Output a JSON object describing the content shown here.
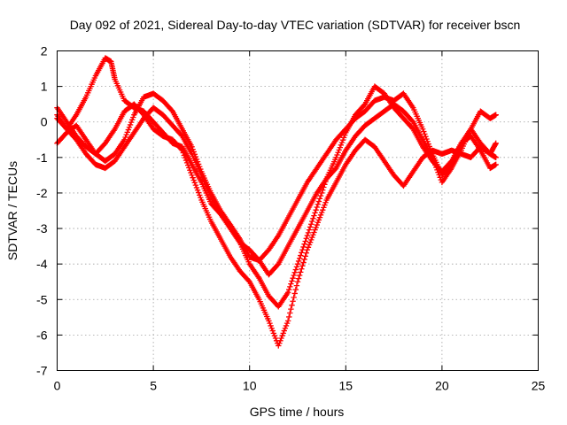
{
  "chart_data": {
    "type": "scatter",
    "title": "Day 092 of 2021, Sidereal Day-to-day VTEC variation (SDTVAR) for receiver bscn",
    "xlabel": "GPS time / hours",
    "ylabel": "SDTVAR / TECUs",
    "xlim": [
      0,
      25
    ],
    "ylim": [
      -7,
      2
    ],
    "x_ticks": [
      "0",
      "5",
      "10",
      "15",
      "20",
      "25"
    ],
    "y_ticks": [
      "-7",
      "-6",
      "-5",
      "-4",
      "-3",
      "-2",
      "-1",
      "0",
      "1",
      "2"
    ],
    "grid": true,
    "legend": "none",
    "marker": "plus",
    "color": "#ff0000",
    "series": [
      {
        "x": [
          0.0,
          0.5,
          1.0,
          1.5,
          2.0,
          2.5,
          2.8,
          3.0,
          3.5,
          4.0,
          4.5,
          5.0,
          5.5,
          6.0,
          6.5,
          7.0,
          7.5,
          8.0,
          8.5,
          9.0,
          9.5,
          10.0,
          10.5,
          11.0,
          11.5,
          12.0,
          12.5,
          13.0,
          13.5,
          14.0,
          14.5,
          15.0,
          15.5,
          16.0,
          16.5,
          17.0,
          17.5,
          18.0,
          18.5,
          19.0,
          19.5,
          20.0,
          20.5,
          21.0,
          21.5,
          22.0,
          22.5,
          22.8
        ],
        "y": [
          0.2,
          -0.2,
          0.2,
          0.7,
          1.3,
          1.8,
          1.7,
          1.2,
          0.6,
          0.4,
          0.3,
          0.0,
          -0.3,
          -0.6,
          -0.7,
          -1.2,
          -1.7,
          -2.3,
          -2.6,
          -2.9,
          -3.3,
          -3.8,
          -3.9,
          -3.6,
          -3.2,
          -2.7,
          -2.2,
          -1.7,
          -1.3,
          -0.9,
          -0.5,
          -0.2,
          0.1,
          0.3,
          0.6,
          0.7,
          0.6,
          0.8,
          0.4,
          -0.2,
          -0.9,
          -1.5,
          -1.2,
          -0.6,
          -0.2,
          -0.6,
          -0.9,
          -1.0
        ]
      },
      {
        "x": [
          0.0,
          0.5,
          1.0,
          1.5,
          2.0,
          2.5,
          3.0,
          3.5,
          4.0,
          4.5,
          5.0,
          5.5,
          6.0,
          6.5,
          7.0,
          7.5,
          8.0,
          8.5,
          9.0,
          9.5,
          10.0,
          10.5,
          11.0,
          11.5,
          12.0,
          12.5,
          13.0,
          13.5,
          14.0,
          14.5,
          15.0,
          15.5,
          16.0,
          16.5,
          17.0,
          17.5,
          18.0,
          18.5,
          19.0,
          19.5,
          20.0,
          20.5,
          21.0,
          21.5,
          22.0,
          22.5,
          22.8
        ],
        "y": [
          -0.6,
          -0.3,
          -0.1,
          -0.5,
          -0.9,
          -1.1,
          -0.9,
          -0.5,
          0.2,
          0.7,
          0.8,
          0.6,
          0.3,
          -0.2,
          -0.7,
          -1.4,
          -2.0,
          -2.5,
          -2.9,
          -3.4,
          -4.0,
          -4.4,
          -4.9,
          -5.2,
          -4.8,
          -4.0,
          -3.2,
          -2.4,
          -1.6,
          -1.0,
          -0.3,
          0.2,
          0.5,
          1.0,
          0.8,
          0.4,
          0.1,
          -0.2,
          -0.7,
          -1.1,
          -1.4,
          -1.1,
          -0.6,
          -0.4,
          -0.8,
          -1.3,
          -1.2
        ]
      },
      {
        "x": [
          0.0,
          0.5,
          1.0,
          1.5,
          2.0,
          2.5,
          3.0,
          3.5,
          4.0,
          4.5,
          5.0,
          5.5,
          6.0,
          6.5,
          7.0,
          7.5,
          8.0,
          8.5,
          9.0,
          9.5,
          10.0,
          10.5,
          11.0,
          11.5,
          12.0,
          12.5,
          13.0,
          13.5,
          14.0,
          14.5,
          15.0,
          15.5,
          16.0,
          16.5,
          17.0,
          17.5,
          18.0,
          18.5,
          19.0,
          19.5,
          20.0,
          20.5,
          21.0,
          21.5,
          22.0,
          22.5,
          22.8
        ],
        "y": [
          0.4,
          0.0,
          -0.4,
          -0.7,
          -0.9,
          -0.6,
          -0.2,
          0.3,
          0.5,
          0.2,
          -0.2,
          -0.4,
          -0.5,
          -0.8,
          -1.5,
          -2.2,
          -2.8,
          -3.3,
          -3.8,
          -4.2,
          -4.5,
          -5.0,
          -5.6,
          -6.3,
          -5.6,
          -4.5,
          -3.6,
          -2.9,
          -2.2,
          -1.7,
          -1.2,
          -0.8,
          -0.5,
          -0.7,
          -1.1,
          -1.5,
          -1.8,
          -1.4,
          -1.0,
          -0.8,
          -0.9,
          -0.8,
          -0.9,
          -1.0,
          -0.7,
          -0.9,
          -0.6
        ]
      },
      {
        "x": [
          0.0,
          0.5,
          1.0,
          1.5,
          2.0,
          2.5,
          3.0,
          3.5,
          4.0,
          4.5,
          5.0,
          5.5,
          6.0,
          6.5,
          7.0,
          7.5,
          8.0,
          8.5,
          9.0,
          9.5,
          10.0,
          10.5,
          11.0,
          11.5,
          12.0,
          12.5,
          13.0,
          13.5,
          14.0,
          14.5,
          15.0,
          15.5,
          16.0,
          16.5,
          17.0,
          17.5,
          18.0,
          18.5,
          19.0,
          19.5,
          20.0,
          20.5,
          21.0,
          21.5,
          22.0,
          22.5,
          22.8
        ],
        "y": [
          0.1,
          -0.2,
          -0.5,
          -0.9,
          -1.2,
          -1.3,
          -1.1,
          -0.7,
          -0.3,
          0.1,
          0.4,
          0.2,
          -0.1,
          -0.4,
          -0.9,
          -1.5,
          -2.1,
          -2.6,
          -3.0,
          -3.4,
          -3.6,
          -3.9,
          -4.3,
          -4.0,
          -3.5,
          -3.0,
          -2.5,
          -2.0,
          -1.6,
          -1.3,
          -0.8,
          -0.4,
          -0.1,
          0.1,
          0.3,
          0.5,
          0.3,
          0.0,
          -0.5,
          -1.0,
          -1.7,
          -1.3,
          -0.8,
          -0.2,
          0.3,
          0.1,
          0.2
        ]
      }
    ]
  }
}
